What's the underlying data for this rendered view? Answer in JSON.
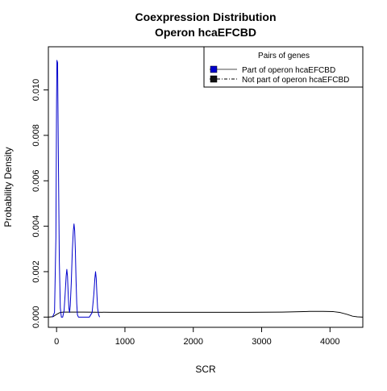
{
  "chart_data": {
    "type": "line",
    "title": "Coexpression Distribution",
    "subtitle": "Operon hcaEFCBD",
    "xlabel": "SCR",
    "ylabel": "Probability Density",
    "xlim": [
      -120,
      4480
    ],
    "ylim": [
      -0.00045,
      0.0119
    ],
    "x_ticks": [
      0,
      1000,
      2000,
      3000,
      4000
    ],
    "x_tick_labels": [
      "0",
      "1000",
      "2000",
      "3000",
      "4000"
    ],
    "y_ticks": [
      0.0,
      0.002,
      0.004,
      0.006,
      0.008,
      0.01
    ],
    "y_tick_labels": [
      "0.000",
      "0.002",
      "0.004",
      "0.006",
      "0.008",
      "0.010"
    ],
    "grid": false,
    "legend": {
      "title": "Pairs of genes",
      "position": "top-right",
      "entries": [
        {
          "label": "Part of operon hcaEFCBD",
          "color": "#0000cc",
          "line": "solid"
        },
        {
          "label": "Not part of operon hcaEFCBD",
          "color": "#000000",
          "line": "dashed"
        }
      ]
    },
    "series": [
      {
        "name": "Part of operon hcaEFCBD",
        "color": "#0000cc",
        "x": [
          -60,
          -30,
          -10,
          0,
          5,
          15,
          25,
          40,
          55,
          70,
          90,
          110,
          125,
          140,
          150,
          160,
          170,
          180,
          190,
          200,
          215,
          230,
          245,
          255,
          265,
          275,
          285,
          295,
          305,
          320,
          340,
          400,
          480,
          520,
          545,
          560,
          570,
          580,
          590,
          600,
          615,
          630
        ],
        "y": [
          0.0,
          0.0002,
          0.0035,
          0.0095,
          0.0113,
          0.0112,
          0.0075,
          0.0025,
          0.0004,
          0.0,
          0.0,
          0.0003,
          0.001,
          0.0018,
          0.0021,
          0.0018,
          0.001,
          0.0004,
          0.0002,
          0.0005,
          0.0015,
          0.0029,
          0.0038,
          0.0041,
          0.0038,
          0.0029,
          0.0016,
          0.0006,
          0.0001,
          0.0,
          0.0,
          0.0,
          0.0,
          0.0002,
          0.001,
          0.0017,
          0.002,
          0.0017,
          0.001,
          0.0004,
          0.0001,
          0.0
        ]
      },
      {
        "name": "Not part of operon hcaEFCBD",
        "color": "#000000",
        "x": [
          -120,
          -50,
          0,
          50,
          100,
          200,
          400,
          800,
          1500,
          2200,
          2800,
          3300,
          3700,
          3900,
          4050,
          4150,
          4250,
          4330,
          4400,
          4480
        ],
        "y": [
          0.0,
          2e-05,
          0.00012,
          0.0002,
          0.00022,
          0.00022,
          0.00022,
          0.00021,
          0.00021,
          0.00021,
          0.00021,
          0.00022,
          0.00025,
          0.00025,
          0.00024,
          0.0002,
          0.00012,
          4e-05,
          1e-05,
          0.0
        ]
      }
    ]
  }
}
